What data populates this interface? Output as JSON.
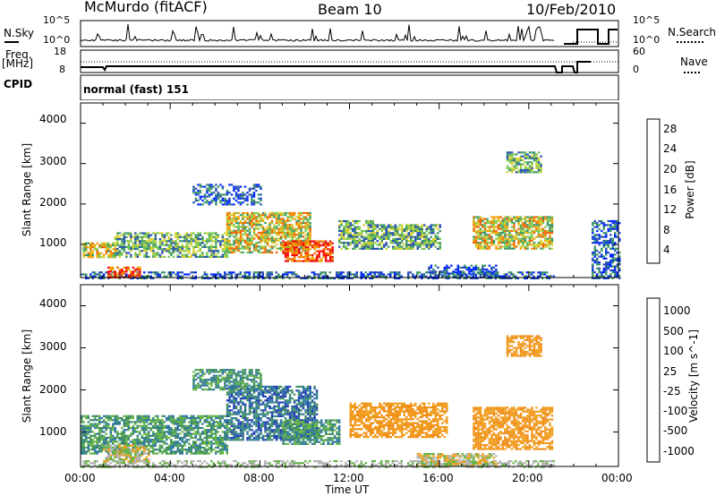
{
  "header": {
    "station": "McMurdo (fitACF)",
    "beam": "Beam 10",
    "date": "10/Feb/2010"
  },
  "top_panels": {
    "nsky_label": "N.Sky",
    "nsky_ticks": [
      "10^5",
      "10^0"
    ],
    "nsearch_label": "N.Search",
    "nsearch_ticks": [
      "10^5",
      "10^0"
    ],
    "freq_label": "Freq.",
    "freq_unit": "[MHz]",
    "freq_ticks": [
      "18",
      "8"
    ],
    "nave_label": "Nave",
    "nave_ticks": [
      "60",
      "0"
    ],
    "cpid_label": "CPID",
    "cpid_value": "normal (fast) 151"
  },
  "chart_data": [
    {
      "type": "heatmap",
      "panel": "power",
      "ylabel": "Slant Range [km]",
      "ylim": [
        180,
        4500
      ],
      "yticks": [
        "4000",
        "3000",
        "2000",
        "1000"
      ],
      "colorbar_label": "Power [dB]",
      "colorbar_ticks": [
        "28",
        "24",
        "20",
        "16",
        "12",
        "8",
        "4"
      ],
      "colorbar_colors": [
        "#0028ff",
        "#2850b4",
        "#3c9664",
        "#78c850",
        "#d2d232",
        "#f0a000",
        "#f06400",
        "#e61414",
        "#ff0000"
      ],
      "scale_range": [
        0,
        30
      ],
      "bands": [
        {
          "t0": 0.0,
          "t1": 21.1,
          "r0": 180,
          "r1": 330,
          "level": "low"
        },
        {
          "t0": 0.1,
          "t1": 1.5,
          "r0": 700,
          "r1": 1050,
          "level": "high"
        },
        {
          "t0": 1.2,
          "t1": 2.6,
          "r0": 180,
          "r1": 450,
          "level": "max"
        },
        {
          "t0": 1.5,
          "t1": 6.5,
          "r0": 700,
          "r1": 1300,
          "level": "mid"
        },
        {
          "t0": 6.5,
          "t1": 10.2,
          "r0": 800,
          "r1": 1800,
          "level": "high"
        },
        {
          "t0": 9.0,
          "t1": 11.2,
          "r0": 600,
          "r1": 1100,
          "level": "max"
        },
        {
          "t0": 11.5,
          "t1": 13.0,
          "r0": 900,
          "r1": 1600,
          "level": "mid"
        },
        {
          "t0": 12.8,
          "t1": 16.0,
          "r0": 900,
          "r1": 1500,
          "level": "mid"
        },
        {
          "t0": 15.5,
          "t1": 18.5,
          "r0": 200,
          "r1": 500,
          "level": "low"
        },
        {
          "t0": 17.5,
          "t1": 21.0,
          "r0": 900,
          "r1": 1700,
          "level": "high"
        },
        {
          "t0": 19.0,
          "t1": 20.5,
          "r0": 2800,
          "r1": 3300,
          "level": "mid"
        },
        {
          "t0": 5.0,
          "t1": 8.0,
          "r0": 2000,
          "r1": 2500,
          "level": "low"
        },
        {
          "t0": 22.8,
          "t1": 24.0,
          "r0": 180,
          "r1": 1600,
          "level": "low"
        }
      ]
    },
    {
      "type": "heatmap",
      "panel": "velocity",
      "ylabel": "Slant Range [km]",
      "xlabel": "Time UT",
      "ylim": [
        180,
        4500
      ],
      "xlim": [
        0,
        24
      ],
      "yticks": [
        "4000",
        "3000",
        "2000",
        "1000"
      ],
      "xticks": [
        "00:00",
        "04:00",
        "08:00",
        "12:00",
        "16:00",
        "20:00",
        "00:00"
      ],
      "colorbar_label": "Velocity [m s^-1]",
      "colorbar_ticks": [
        "1000",
        "500",
        "100",
        "25",
        "-25",
        "-100",
        "-500",
        "-1000"
      ],
      "colorbar_colors": [
        "#1e3cb4",
        "#2d78a0",
        "#3c8c64",
        "#64b446",
        "#b4b4b4",
        "#f0a01e",
        "#f08c14",
        "#f04614",
        "#e61414"
      ],
      "scale_range": [
        -1000,
        1000
      ],
      "bands": [
        {
          "t0": 0.0,
          "t1": 21.1,
          "r0": 180,
          "r1": 330,
          "level": "ground"
        },
        {
          "t0": 0.0,
          "t1": 6.5,
          "r0": 500,
          "r1": 1400,
          "level": "mid-pos"
        },
        {
          "t0": 1.0,
          "t1": 3.0,
          "r0": 300,
          "r1": 700,
          "level": "near-zero"
        },
        {
          "t0": 6.5,
          "t1": 10.5,
          "r0": 800,
          "r1": 2100,
          "level": "high-pos"
        },
        {
          "t0": 9.0,
          "t1": 11.5,
          "r0": 700,
          "r1": 1300,
          "level": "mid-pos"
        },
        {
          "t0": 12.0,
          "t1": 16.3,
          "r0": 900,
          "r1": 1700,
          "level": "mid-neg"
        },
        {
          "t0": 15.0,
          "t1": 18.5,
          "r0": 200,
          "r1": 500,
          "level": "near-zero"
        },
        {
          "t0": 17.5,
          "t1": 21.0,
          "r0": 600,
          "r1": 1600,
          "level": "mid-neg"
        },
        {
          "t0": 19.0,
          "t1": 20.5,
          "r0": 2800,
          "r1": 3300,
          "level": "mid-neg"
        },
        {
          "t0": 5.0,
          "t1": 8.0,
          "r0": 2000,
          "r1": 2500,
          "level": "mid-pos"
        }
      ]
    }
  ]
}
